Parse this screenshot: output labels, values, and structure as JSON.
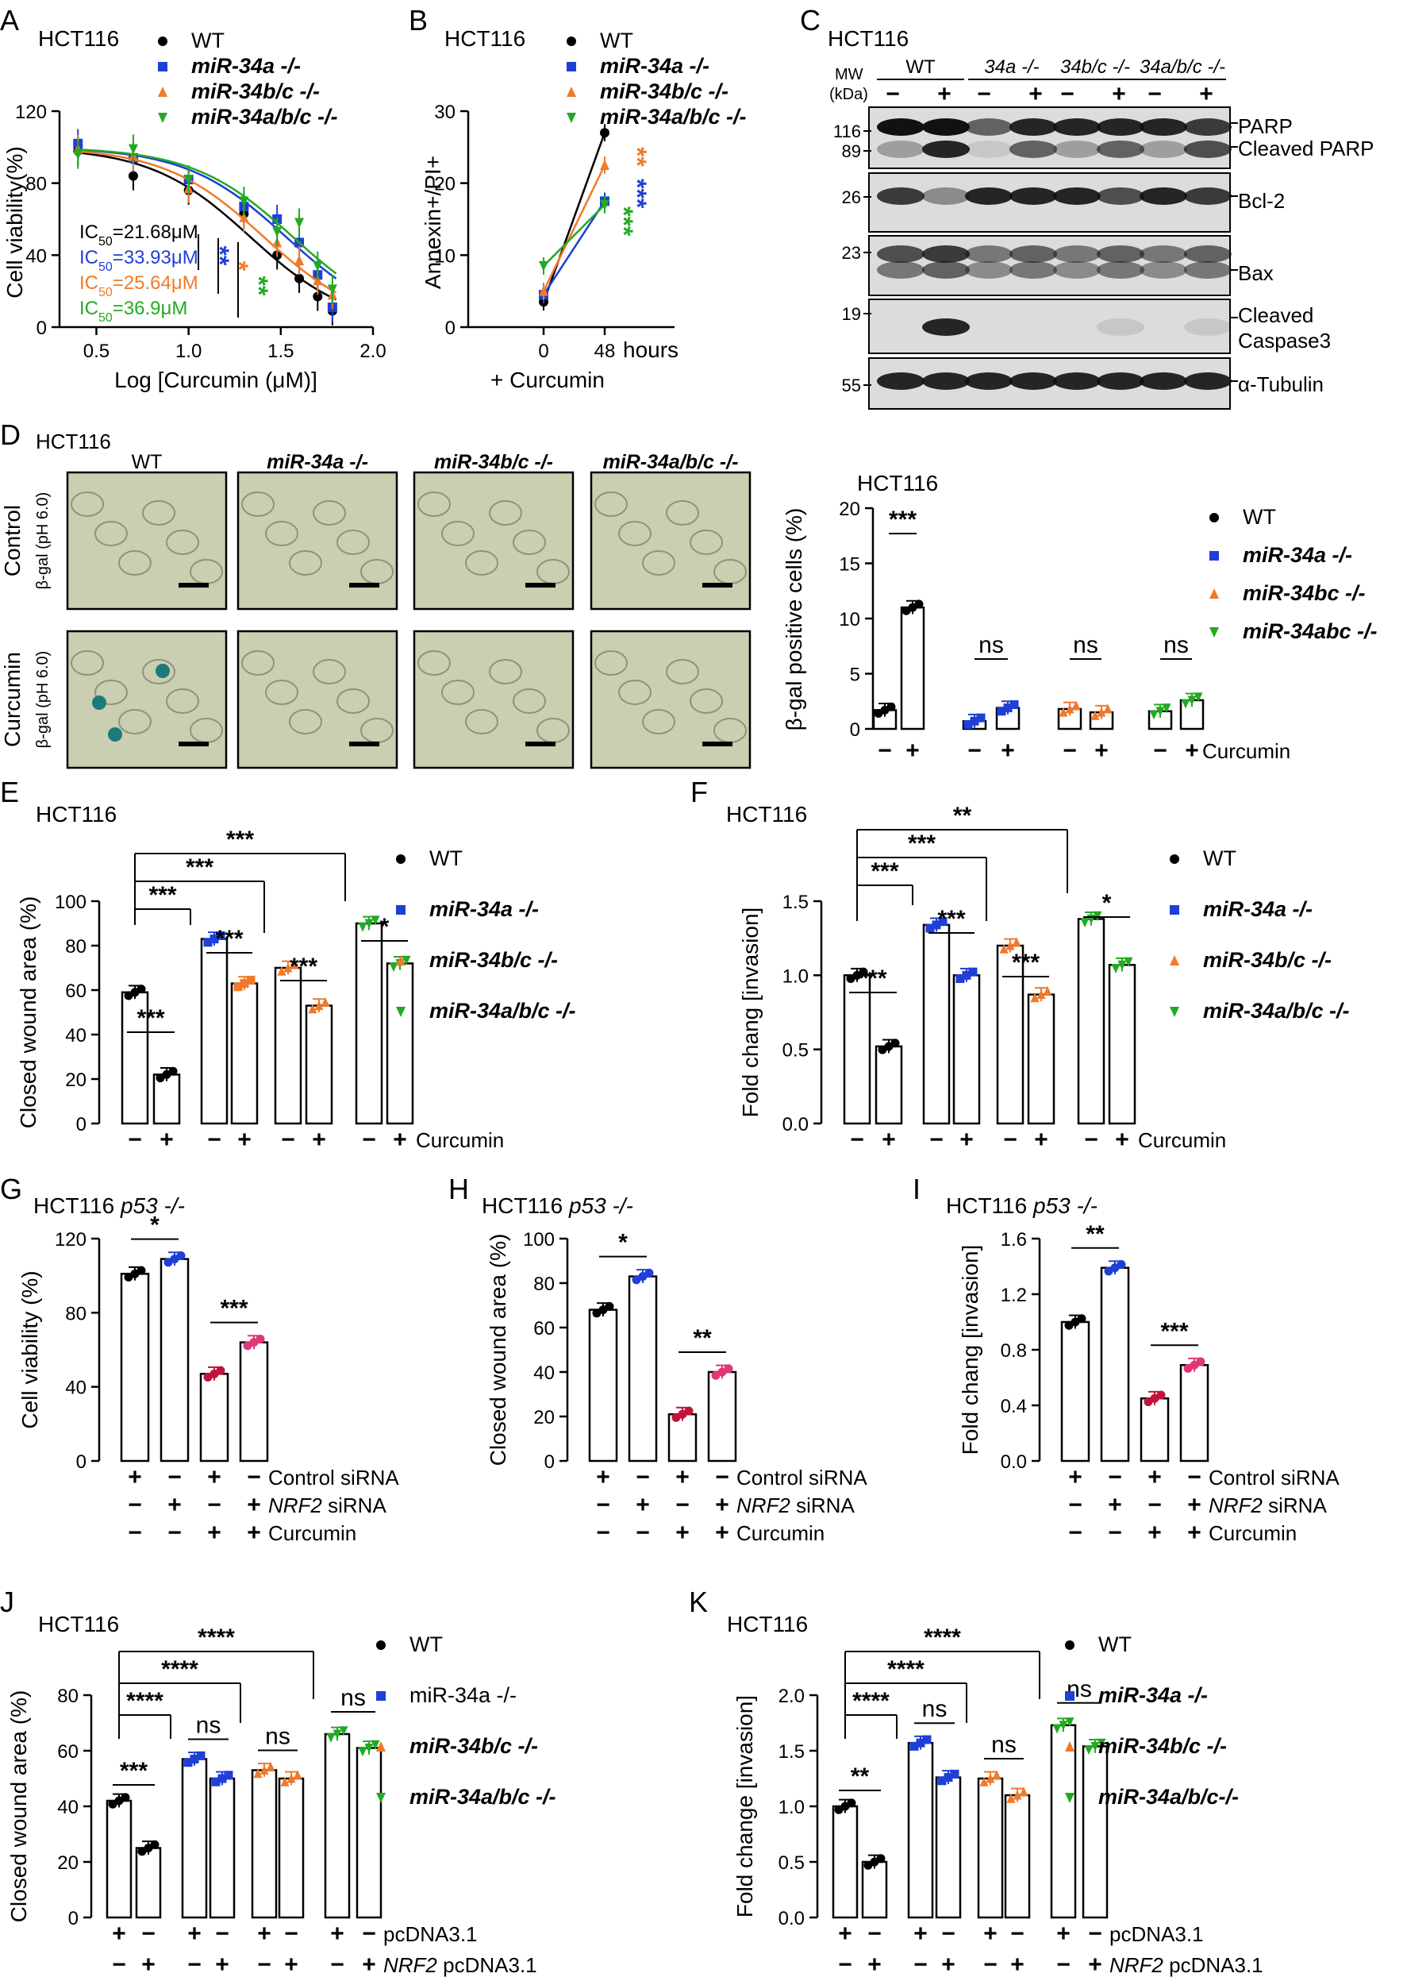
{
  "colors": {
    "wt": "#000000",
    "mir34a": "#1f3fd6",
    "mir34bc": "#f07a2a",
    "mir34abc": "#22aa22",
    "p53a": "#c0143c",
    "p53b": "#e0377a",
    "figD": "#000000"
  },
  "panels": {
    "A": {
      "letter": "A",
      "cell": "HCT116",
      "xlabel": "Log [Curcumin (μM)]",
      "ylabel": "Cell viability(%)",
      "ic50": [
        "IC50=21.68μM",
        "IC50=33.93μM",
        "IC50=25.64μM",
        "IC50=36.9μM"
      ],
      "stars": [
        "**",
        "*",
        "**"
      ],
      "legend": [
        "WT",
        "miR-34a -/-",
        "miR-34b/c -/-",
        "miR-34a/b/c -/-"
      ]
    },
    "B": {
      "letter": "B",
      "cell": "HCT116",
      "ylabel": "Annexin+/PI+",
      "xunit": "hours",
      "xnote": "+ Curcumin",
      "stars": [
        "**",
        "***",
        "***"
      ],
      "legend": [
        "WT",
        "miR-34a -/-",
        "miR-34b/c -/-",
        "miR-34a/b/c -/-"
      ]
    },
    "C": {
      "letter": "C",
      "cell": "HCT116",
      "mw": "MW",
      "kda": "(kDa)",
      "groups": [
        "WT",
        "34a -/-",
        "34b/c -/-",
        "34a/b/c -/-"
      ],
      "minus": "−",
      "plus": "+",
      "markers": [
        "116",
        "89",
        "26",
        "23",
        "19",
        "55"
      ],
      "bands": [
        "PARP",
        "Cleaved PARP",
        "Bcl-2",
        "Bax",
        "Cleaved",
        "Caspase3",
        "α-Tubulin"
      ]
    },
    "D": {
      "letter": "D",
      "cell": "HCT116",
      "cols": [
        "WT",
        "miR-34a -/-",
        "miR-34b/c -/-",
        "miR-34a/b/c -/-"
      ],
      "rows": [
        "Control",
        "Curcumin"
      ],
      "stain": "β-gal (pH 6.0)",
      "chart_cell": "HCT116",
      "ylabel": "β-gal positive cells (%)",
      "curcumin": "Curcumin",
      "stars": [
        "***",
        "ns",
        "ns",
        "ns"
      ],
      "legend": [
        "WT",
        "miR-34a -/-",
        "miR-34bc -/-",
        "miR-34abc -/-"
      ]
    },
    "E": {
      "letter": "E",
      "cell": "HCT116",
      "ylabel": "Closed wound area (%)",
      "curcumin": "Curcumin",
      "stars": [
        "***",
        "***",
        "***",
        "***",
        "***",
        "***",
        "***",
        "*"
      ],
      "legend": [
        "WT",
        "miR-34a -/-",
        "miR-34b/c -/-",
        "miR-34a/b/c -/-"
      ]
    },
    "F": {
      "letter": "F",
      "cell": "HCT116",
      "ylabel": "Fold chang [invasion]",
      "curcumin": "Curcumin",
      "stars": [
        "**",
        "***",
        "***",
        "***",
        "***",
        "***",
        "*"
      ],
      "legend": [
        "WT",
        "miR-34a -/-",
        "miR-34b/c -/-",
        "miR-34a/b/c -/-"
      ]
    },
    "G": {
      "letter": "G",
      "cell": "HCT116",
      "cell2": "p53 -/-",
      "ylabel": "Cell viability (%)",
      "stars": [
        "*",
        "***"
      ]
    },
    "H": {
      "letter": "H",
      "cell": "HCT116",
      "cell2": "p53 -/-",
      "ylabel": "Closed wound area (%)",
      "stars": [
        "*",
        "**"
      ]
    },
    "I": {
      "letter": "I",
      "cell": "HCT116",
      "cell2": "p53 -/-",
      "ylabel": "Fold chang [invasion]",
      "stars": [
        "**",
        "***"
      ]
    },
    "J": {
      "letter": "J",
      "cell": "HCT116",
      "ylabel": "Closed wound area (%)",
      "row1": "pcDNA3.1",
      "row2a": "NRF2",
      "row2b": " pcDNA3.1",
      "stars": [
        "****",
        "****",
        "****",
        "***",
        "ns",
        "ns",
        "ns"
      ],
      "legend": [
        "WT",
        "miR-34a -/-",
        "miR-34b/c -/-",
        "miR-34a/b/c -/-"
      ]
    },
    "K": {
      "letter": "K",
      "cell": "HCT116",
      "ylabel": "Fold change [invasion]",
      "row1": "pcDNA3.1",
      "row2a": "NRF2",
      "row2b": " pcDNA3.1",
      "stars": [
        "****",
        "****",
        "****",
        "**",
        "ns",
        "ns",
        "ns"
      ],
      "legend": [
        "WT",
        "miR-34a -/-",
        "miR-34b/c -/-",
        "miR-34a/b/c-/-"
      ]
    },
    "siRNA": {
      "ctrl": "Control siRNA",
      "nrf2": "NRF2",
      "sirna": " siRNA",
      "curcumin": "Curcumin"
    }
  },
  "chart_data": [
    {
      "type": "line",
      "panel": "A",
      "x": [
        0.4,
        0.7,
        1.0,
        1.3,
        1.48,
        1.6,
        1.7,
        1.78
      ],
      "series": [
        {
          "name": "WT",
          "values": [
            98,
            84,
            76,
            63,
            40,
            27,
            17,
            9
          ]
        },
        {
          "name": "miR-34a -/-",
          "values": [
            102,
            94,
            82,
            67,
            60,
            47,
            29,
            11
          ]
        },
        {
          "name": "miR-34b/c -/-",
          "values": [
            99,
            95,
            77,
            61,
            47,
            37,
            26,
            18
          ]
        },
        {
          "name": "miR-34a/b/c -/-",
          "values": [
            96,
            99,
            82,
            70,
            53,
            58,
            34,
            21
          ]
        }
      ],
      "xlim": [
        0.3,
        2.0
      ],
      "ylim": [
        0,
        120
      ],
      "xticks": [
        0.5,
        1.0,
        1.5,
        2.0
      ],
      "yticks": [
        0,
        40,
        80,
        120
      ]
    },
    {
      "type": "line",
      "panel": "B",
      "x": [
        0,
        48
      ],
      "series": [
        {
          "name": "WT",
          "values": [
            3.5,
            27
          ]
        },
        {
          "name": "miR-34a -/-",
          "values": [
            4.5,
            17.5
          ]
        },
        {
          "name": "miR-34b/c -/-",
          "values": [
            5,
            22.5
          ]
        },
        {
          "name": "miR-34a/b/c -/-",
          "values": [
            8.5,
            17
          ]
        }
      ],
      "ylim": [
        0,
        30
      ],
      "yticks": [
        0,
        10,
        20,
        30
      ],
      "xticks": [
        0,
        48
      ]
    },
    {
      "type": "bar",
      "panel": "D",
      "values": [
        1.7,
        11,
        0.7,
        1.9,
        1.8,
        1.5,
        1.6,
        2.6
      ],
      "ylim": [
        0,
        20
      ],
      "yticks": [
        0,
        5,
        10,
        15,
        20
      ]
    },
    {
      "type": "bar",
      "panel": "E",
      "values": [
        59,
        22,
        83,
        63,
        70,
        53,
        90,
        72
      ],
      "ylim": [
        0,
        100
      ],
      "yticks": [
        0,
        20,
        40,
        60,
        80,
        100
      ]
    },
    {
      "type": "bar",
      "panel": "F",
      "values": [
        1.0,
        0.52,
        1.34,
        1.0,
        1.2,
        0.87,
        1.38,
        1.07
      ],
      "ylim": [
        0,
        1.5
      ],
      "yticks": [
        0.0,
        0.5,
        1.0,
        1.5
      ]
    },
    {
      "type": "bar",
      "panel": "G",
      "values": [
        101,
        109,
        47,
        64
      ],
      "ylim": [
        0,
        120
      ],
      "yticks": [
        0,
        40,
        80,
        120
      ]
    },
    {
      "type": "bar",
      "panel": "H",
      "values": [
        68,
        83,
        21,
        40
      ],
      "ylim": [
        0,
        100
      ],
      "yticks": [
        0,
        20,
        40,
        60,
        80,
        100
      ]
    },
    {
      "type": "bar",
      "panel": "I",
      "values": [
        1.0,
        1.39,
        0.45,
        0.69
      ],
      "ylim": [
        0,
        1.6
      ],
      "yticks": [
        0.0,
        0.4,
        0.8,
        1.2,
        1.6
      ]
    },
    {
      "type": "bar",
      "panel": "J",
      "values": [
        42,
        25,
        57,
        50,
        53,
        50,
        66,
        61
      ],
      "ylim": [
        0,
        80
      ],
      "yticks": [
        0,
        20,
        40,
        60,
        80
      ]
    },
    {
      "type": "bar",
      "panel": "K",
      "values": [
        1.0,
        0.5,
        1.57,
        1.26,
        1.25,
        1.1,
        1.73,
        1.54
      ],
      "ylim": [
        0,
        2.0
      ],
      "yticks": [
        0.0,
        0.5,
        1.0,
        1.5,
        2.0
      ]
    }
  ]
}
